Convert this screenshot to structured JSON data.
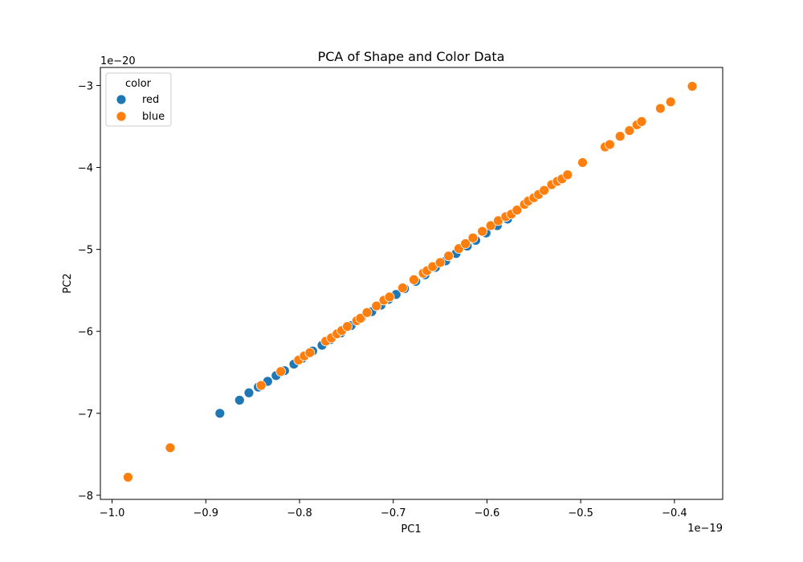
{
  "chart_data": {
    "type": "scatter",
    "title": "PCA of Shape and Color Data",
    "xlabel": "PC1",
    "ylabel": "PC2",
    "x_multiplier": "1e−19",
    "y_multiplier": "1e−20",
    "xlim": [
      -1.0125,
      -0.3485
    ],
    "ylim": [
      -8.05,
      -2.78
    ],
    "xticks": [
      -1.0,
      -0.9,
      -0.8,
      -0.7,
      -0.6,
      -0.5,
      -0.4
    ],
    "xtick_labels": [
      "−1.0",
      "−0.9",
      "−0.8",
      "−0.7",
      "−0.6",
      "−0.5",
      "−0.4"
    ],
    "yticks": [
      -8,
      -7,
      -6,
      -5,
      -4,
      -3
    ],
    "ytick_labels": [
      "−8",
      "−7",
      "−6",
      "−5",
      "−4",
      "−3"
    ],
    "grid": false,
    "legend": {
      "title": "color",
      "placement": "top-left",
      "entries": [
        "red",
        "blue"
      ]
    },
    "series": [
      {
        "name": "red",
        "color": "#1f77b4",
        "points": [
          [
            -0.885,
            -7.0
          ],
          [
            -0.864,
            -6.84
          ],
          [
            -0.854,
            -6.75
          ],
          [
            -0.844,
            -6.68
          ],
          [
            -0.834,
            -6.61
          ],
          [
            -0.825,
            -6.54
          ],
          [
            -0.816,
            -6.48
          ],
          [
            -0.806,
            -6.4
          ],
          [
            -0.797,
            -6.33
          ],
          [
            -0.786,
            -6.24
          ],
          [
            -0.776,
            -6.17
          ],
          [
            -0.767,
            -6.1
          ],
          [
            -0.756,
            -6.02
          ],
          [
            -0.745,
            -5.93
          ],
          [
            -0.734,
            -5.84
          ],
          [
            -0.723,
            -5.76
          ],
          [
            -0.713,
            -5.68
          ],
          [
            -0.705,
            -5.61
          ],
          [
            -0.697,
            -5.55
          ],
          [
            -0.688,
            -5.48
          ],
          [
            -0.676,
            -5.39
          ],
          [
            -0.666,
            -5.31
          ],
          [
            -0.655,
            -5.22
          ],
          [
            -0.644,
            -5.14
          ],
          [
            -0.633,
            -5.05
          ],
          [
            -0.621,
            -4.96
          ],
          [
            -0.612,
            -4.89
          ],
          [
            -0.601,
            -4.8
          ],
          [
            -0.589,
            -4.71
          ],
          [
            -0.578,
            -4.63
          ]
        ]
      },
      {
        "name": "blue",
        "color": "#ff7f0e",
        "points": [
          [
            -0.983,
            -7.78
          ],
          [
            -0.938,
            -7.42
          ],
          [
            -0.841,
            -6.66
          ],
          [
            -0.82,
            -6.49
          ],
          [
            -0.801,
            -6.35
          ],
          [
            -0.795,
            -6.3
          ],
          [
            -0.789,
            -6.26
          ],
          [
            -0.772,
            -6.12
          ],
          [
            -0.766,
            -6.08
          ],
          [
            -0.76,
            -6.03
          ],
          [
            -0.755,
            -5.99
          ],
          [
            -0.749,
            -5.94
          ],
          [
            -0.739,
            -5.87
          ],
          [
            -0.735,
            -5.84
          ],
          [
            -0.728,
            -5.77
          ],
          [
            -0.718,
            -5.69
          ],
          [
            -0.71,
            -5.62
          ],
          [
            -0.704,
            -5.58
          ],
          [
            -0.69,
            -5.47
          ],
          [
            -0.678,
            -5.37
          ],
          [
            -0.668,
            -5.29
          ],
          [
            -0.664,
            -5.26
          ],
          [
            -0.658,
            -5.21
          ],
          [
            -0.65,
            -5.16
          ],
          [
            -0.641,
            -5.08
          ],
          [
            -0.63,
            -4.99
          ],
          [
            -0.623,
            -4.93
          ],
          [
            -0.615,
            -4.86
          ],
          [
            -0.605,
            -4.78
          ],
          [
            -0.596,
            -4.71
          ],
          [
            -0.588,
            -4.65
          ],
          [
            -0.58,
            -4.6
          ],
          [
            -0.574,
            -4.57
          ],
          [
            -0.568,
            -4.52
          ],
          [
            -0.56,
            -4.45
          ],
          [
            -0.556,
            -4.41
          ],
          [
            -0.55,
            -4.37
          ],
          [
            -0.545,
            -4.33
          ],
          [
            -0.539,
            -4.28
          ],
          [
            -0.531,
            -4.21
          ],
          [
            -0.525,
            -4.17
          ],
          [
            -0.52,
            -4.14
          ],
          [
            -0.514,
            -4.09
          ],
          [
            -0.498,
            -3.94
          ],
          [
            -0.474,
            -3.75
          ],
          [
            -0.469,
            -3.72
          ],
          [
            -0.458,
            -3.62
          ],
          [
            -0.448,
            -3.55
          ],
          [
            -0.44,
            -3.48
          ],
          [
            -0.435,
            -3.44
          ],
          [
            -0.415,
            -3.28
          ],
          [
            -0.404,
            -3.2
          ],
          [
            -0.381,
            -3.01
          ]
        ]
      }
    ]
  }
}
